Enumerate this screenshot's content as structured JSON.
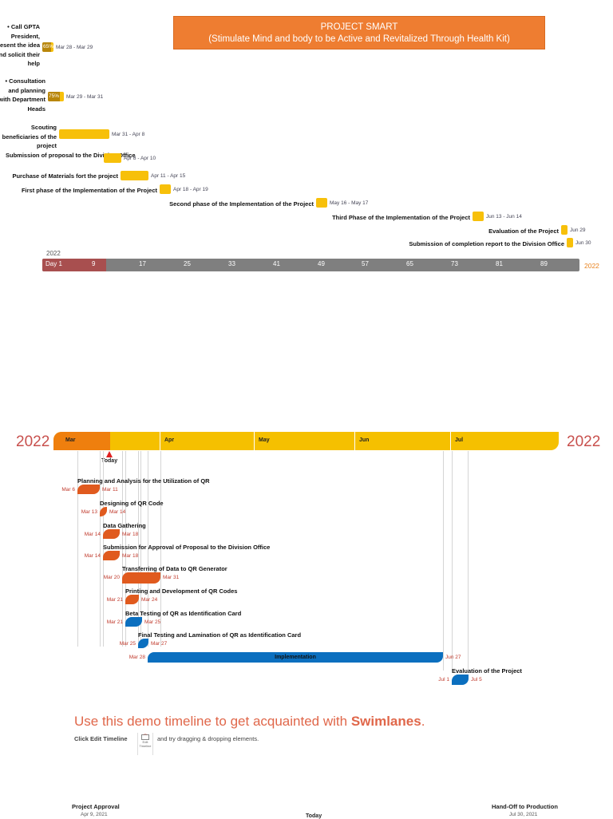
{
  "header": {
    "title_line1": "PROJECT SMART",
    "title_line2": "(Stimulate Mind and body to be Active and Revitalized Through Health Kit)"
  },
  "gantt": {
    "tasks": [
      {
        "label": "• Call GPTA President, present the idea and solicit their help",
        "dates": "Mar 28 - Mar 29",
        "progress": "65%"
      },
      {
        "label": "• Consultation and planning with Department Heads",
        "dates": "Mar 29 - Mar 31",
        "progress": "75%"
      },
      {
        "label": "Scouting beneficiaries of the project",
        "dates": "Mar 31 - Apr 8"
      },
      {
        "label": "Submission of proposal to the Division Office",
        "dates": "Apr 8 - Apr 10"
      },
      {
        "label": "Purchase of Materials fort the project",
        "dates": "Apr 11 - Apr 15"
      },
      {
        "label": "First phase of the Implementation of the Project",
        "dates": "Apr 18 - Apr 19"
      },
      {
        "label": "Second phase of the Implementation of the Project",
        "dates": "May 16 - May 17"
      },
      {
        "label": "Third Phase of the Implementation of the Project",
        "dates": "Jun 13 - Jun 14"
      },
      {
        "label": "Evaluation of the Project",
        "dates": "Jun 29"
      },
      {
        "label": "Submission of completion report to the Division Office",
        "dates": "Jun 30"
      }
    ],
    "year_left": "2022",
    "year_right": "2022",
    "ticks": [
      "Day 1",
      "9",
      "17",
      "25",
      "33",
      "41",
      "49",
      "57",
      "65",
      "73",
      "81",
      "89"
    ],
    "colors": {
      "bar": "#f7c00a",
      "done": "#a84f4f",
      "axis": "#7f7f7f",
      "year_right": "#e8821e"
    }
  },
  "swimlane": {
    "year_left": "2022",
    "year_right": "2022",
    "months": [
      "Mar",
      "Apr",
      "May",
      "Jun",
      "Jul"
    ],
    "today": "Today",
    "tasks": [
      {
        "label": "Planning and Analysis for the Utilization of QR",
        "start": "Mar 6",
        "end": "Mar 11",
        "color": "#e05a1e"
      },
      {
        "label": "Designing of QR Code",
        "start": "Mar 13",
        "end": "Mar 14",
        "color": "#e05a1e"
      },
      {
        "label": "Data Gathering",
        "start": "Mar 14",
        "end": "Mar 18",
        "color": "#e05a1e"
      },
      {
        "label": "Submission for Approval of Proposal to the Division Office",
        "start": "Mar 14",
        "end": "Mar 18",
        "color": "#e05a1e"
      },
      {
        "label": "Transferring of Data to QR Generator",
        "start": "Mar 20",
        "end": "Mar 31",
        "color": "#e05a1e"
      },
      {
        "label": "Printing and Development of QR Codes",
        "start": "Mar 21",
        "end": "Mar 24",
        "color": "#e05a1e"
      },
      {
        "label": "Beta Testing of QR as Identification Card",
        "start": "Mar 21",
        "end": "Mar 25",
        "color": "#0b6fbf"
      },
      {
        "label": "Final Testing and Lamination of QR as Identification Card",
        "start": "Mar 25",
        "end": "Mar 27",
        "color": "#0b6fbf"
      },
      {
        "label": "Implementation",
        "start": "Mar 28",
        "end": "Jun 27",
        "color": "#0b6fbf"
      },
      {
        "label": "Evaluation of the Project",
        "start": "Jul 1",
        "end": "Jul 5",
        "color": "#0b6fbf"
      }
    ]
  },
  "demo": {
    "headline_prefix": "Use this demo timeline to get acquainted with ",
    "headline_bold": "Swimlanes",
    "headline_suffix": ".",
    "instruction_prefix": "Click Edit Timeline",
    "edit_button_label": "Edit Timeline",
    "instruction_suffix": "and try dragging & dropping elements."
  },
  "footer": {
    "left_title": "Project Approval",
    "left_date": "Apr 9, 2021",
    "center": "Today",
    "right_title": "Hand-Off to Production",
    "right_date": "Jul 30, 2021"
  }
}
